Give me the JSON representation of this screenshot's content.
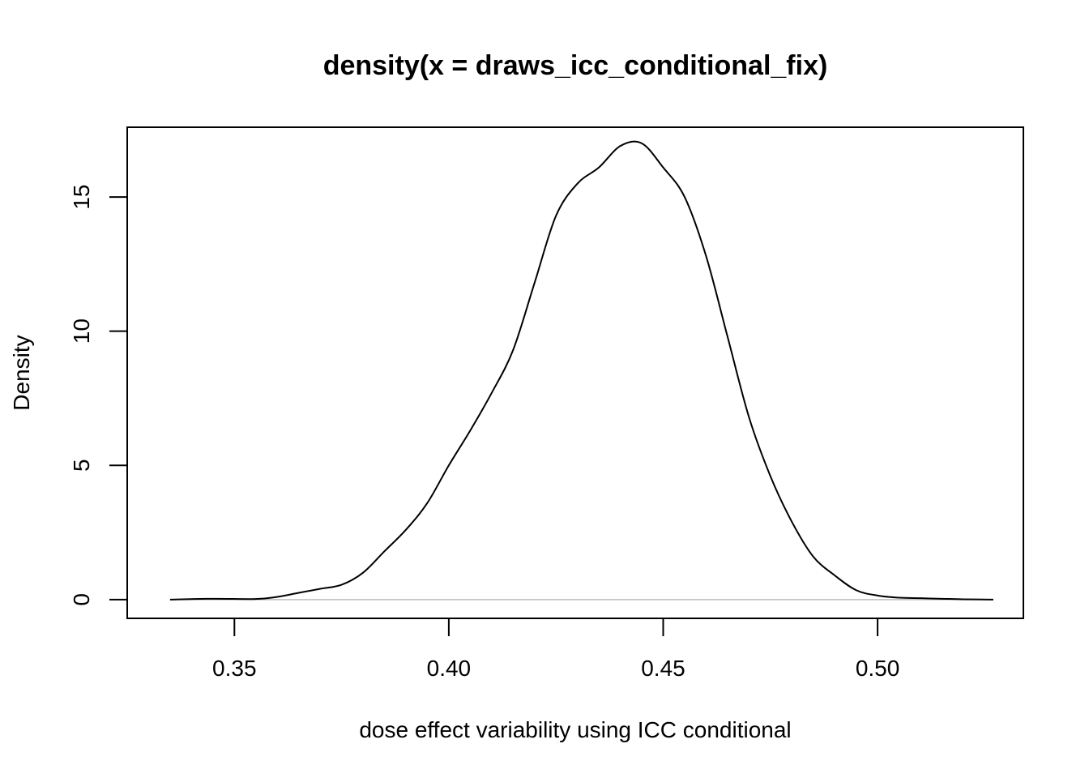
{
  "chart_data": {
    "type": "line",
    "title": "density(x = draws_icc_conditional_fix)",
    "xlabel": "dose effect variability using ICC conditional",
    "ylabel": "Density",
    "xlim": [
      0.325,
      0.534
    ],
    "ylim": [
      -0.7,
      17.6
    ],
    "x_ticks": [
      0.35,
      0.4,
      0.45,
      0.5
    ],
    "x_tick_labels": [
      "0.35",
      "0.40",
      "0.45",
      "0.50"
    ],
    "y_ticks": [
      0,
      5,
      10,
      15
    ],
    "y_tick_labels": [
      "0",
      "5",
      "10",
      "15"
    ],
    "baseline": 0,
    "baseline_color": "#bebebe",
    "line_color": "#000000",
    "grid": false,
    "series": [
      {
        "x": [
          0.335,
          0.345,
          0.355,
          0.36,
          0.365,
          0.37,
          0.375,
          0.38,
          0.385,
          0.39,
          0.395,
          0.4,
          0.405,
          0.41,
          0.415,
          0.42,
          0.425,
          0.43,
          0.435,
          0.44,
          0.445,
          0.45,
          0.455,
          0.46,
          0.465,
          0.47,
          0.475,
          0.48,
          0.485,
          0.49,
          0.495,
          0.5,
          0.505,
          0.51,
          0.515,
          0.52,
          0.527
        ],
        "y": [
          0.0,
          0.03,
          0.02,
          0.1,
          0.25,
          0.4,
          0.55,
          1.0,
          1.8,
          2.6,
          3.6,
          5.0,
          6.3,
          7.7,
          9.3,
          11.8,
          14.3,
          15.5,
          16.1,
          16.9,
          17.0,
          16.1,
          15.0,
          12.8,
          9.8,
          6.8,
          4.6,
          2.9,
          1.6,
          0.9,
          0.35,
          0.15,
          0.07,
          0.05,
          0.03,
          0.01,
          0.0
        ]
      }
    ]
  }
}
